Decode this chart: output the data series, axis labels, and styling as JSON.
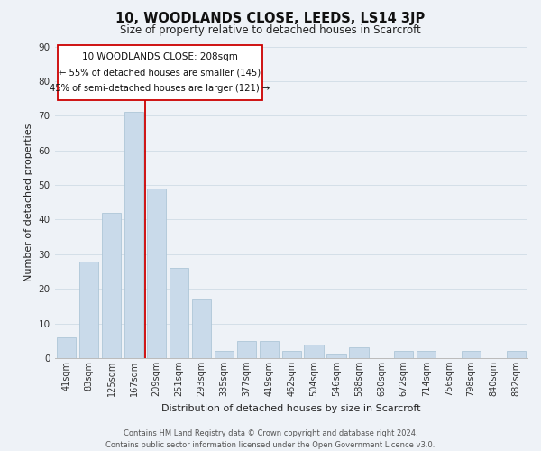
{
  "title": "10, WOODLANDS CLOSE, LEEDS, LS14 3JP",
  "subtitle": "Size of property relative to detached houses in Scarcroft",
  "xlabel": "Distribution of detached houses by size in Scarcroft",
  "ylabel": "Number of detached properties",
  "bar_labels": [
    "41sqm",
    "83sqm",
    "125sqm",
    "167sqm",
    "209sqm",
    "251sqm",
    "293sqm",
    "335sqm",
    "377sqm",
    "419sqm",
    "462sqm",
    "504sqm",
    "546sqm",
    "588sqm",
    "630sqm",
    "672sqm",
    "714sqm",
    "756sqm",
    "798sqm",
    "840sqm",
    "882sqm"
  ],
  "bar_heights": [
    6,
    28,
    42,
    71,
    49,
    26,
    17,
    2,
    5,
    5,
    2,
    4,
    1,
    3,
    0,
    2,
    2,
    0,
    2,
    0,
    2
  ],
  "bar_color": "#c9daea",
  "bar_edge_color": "#aec6d8",
  "grid_color": "#d4dfe8",
  "property_line_color": "#cc0000",
  "annotation_line1": "10 WOODLANDS CLOSE: 208sqm",
  "annotation_line2": "← 55% of detached houses are smaller (145)",
  "annotation_line3": "45% of semi-detached houses are larger (121) →",
  "ylim": [
    0,
    90
  ],
  "yticks": [
    0,
    10,
    20,
    30,
    40,
    50,
    60,
    70,
    80,
    90
  ],
  "footer_line1": "Contains HM Land Registry data © Crown copyright and database right 2024.",
  "footer_line2": "Contains public sector information licensed under the Open Government Licence v3.0.",
  "background_color": "#eef2f7",
  "title_fontsize": 10.5,
  "subtitle_fontsize": 8.5,
  "axis_label_fontsize": 8,
  "tick_fontsize": 7,
  "footer_fontsize": 6
}
